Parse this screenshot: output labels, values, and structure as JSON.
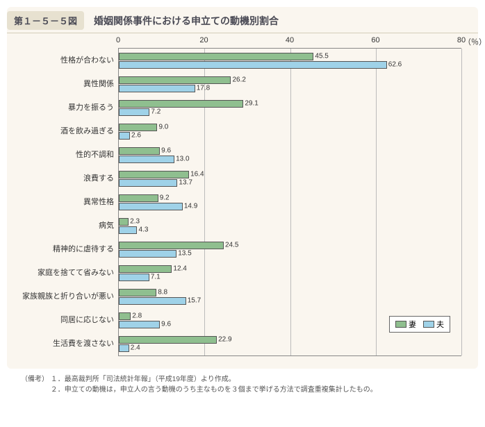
{
  "figure_number": "第１－５－５図",
  "figure_title": "婚姻関係事件における申立ての動機別割合",
  "chart": {
    "type": "bar",
    "orientation": "horizontal",
    "xlim": [
      0,
      80
    ],
    "xtick_step": 20,
    "xticks": [
      0,
      20,
      40,
      60,
      80
    ],
    "unit_label": "（％）",
    "background_color": "#faf6ef",
    "grid_color": "#bbbbbb",
    "axis_color": "#888888",
    "label_fontsize": 11,
    "value_fontsize": 10,
    "series": [
      {
        "name": "妻",
        "color": "#8fbf8f",
        "border_color": "#555555"
      },
      {
        "name": "夫",
        "color": "#9fd2e8",
        "border_color": "#555555"
      }
    ],
    "categories": [
      {
        "label": "性格が合わない",
        "values": [
          45.5,
          62.6
        ]
      },
      {
        "label": "異性関係",
        "values": [
          26.2,
          17.8
        ]
      },
      {
        "label": "暴力を振るう",
        "values": [
          29.1,
          7.2
        ]
      },
      {
        "label": "酒を飲み過ぎる",
        "values": [
          9.0,
          2.6
        ]
      },
      {
        "label": "性的不調和",
        "values": [
          9.6,
          13.0
        ]
      },
      {
        "label": "浪費する",
        "values": [
          16.4,
          13.7
        ]
      },
      {
        "label": "異常性格",
        "values": [
          9.2,
          14.9
        ]
      },
      {
        "label": "病気",
        "values": [
          2.3,
          4.3
        ]
      },
      {
        "label": "精神的に虐待する",
        "values": [
          24.5,
          13.5
        ]
      },
      {
        "label": "家庭を捨てて省みない",
        "values": [
          12.4,
          7.1
        ]
      },
      {
        "label": "家族親族と折り合いが悪い",
        "values": [
          8.8,
          15.7
        ]
      },
      {
        "label": "同居に応じない",
        "values": [
          2.8,
          9.6
        ]
      },
      {
        "label": "生活費を渡さない",
        "values": [
          22.9,
          2.4
        ]
      }
    ],
    "legend": {
      "position": "bottom-right"
    }
  },
  "notes": {
    "prefix": "（備考）",
    "lines": [
      "１．最高裁判所「司法統計年報」（平成19年度）より作成。",
      "２．申立ての動機は，申立人の言う動機のうち主なものを３個まで挙げる方法で調査重複集計したもの。"
    ]
  }
}
